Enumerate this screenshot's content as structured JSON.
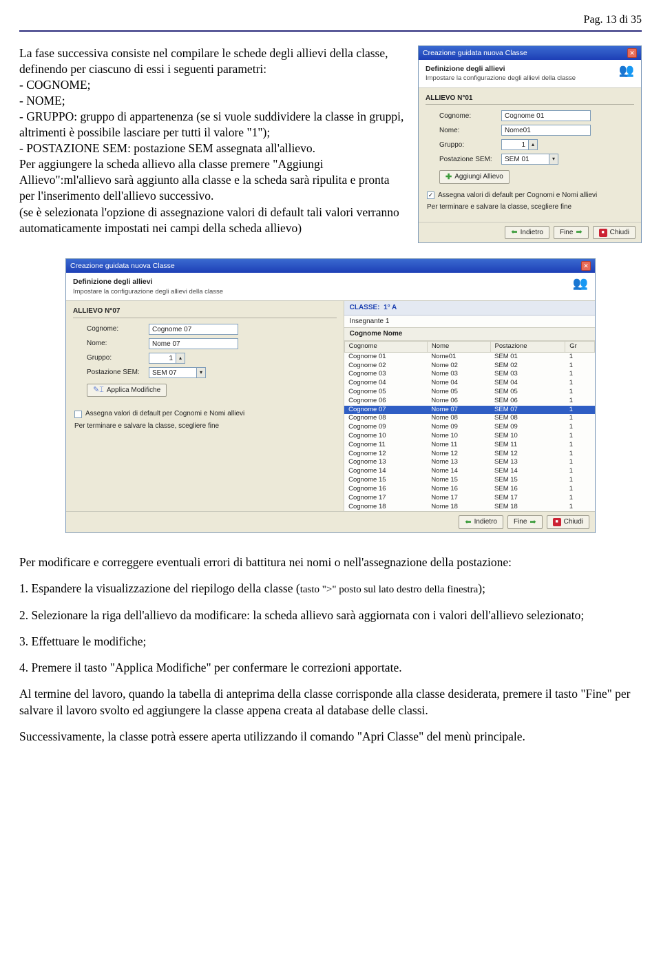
{
  "page": {
    "header": "Pag. 13 di 35"
  },
  "intro": {
    "para": "La fase successiva consiste nel compilare le schede degli allievi della classe, definendo per ciascuno di essi i seguenti parametri:",
    "items": {
      "a": "- COGNOME;",
      "b": "- NOME;",
      "c": "- GRUPPO: gruppo di appartenenza (se si vuole suddividere la classe in gruppi, altrimenti è possibile lasciare per tutti il valore \"1\");",
      "d": "- POSTAZIONE SEM: postazione SEM assegnata all'allievo."
    },
    "p2": "Per aggiungere la scheda allievo alla classe premere \"Aggiungi Allievo\":ml'allievo sarà aggiunto alla classe e la scheda sarà ripulita e pronta per l'inserimento dell'allievo successivo.",
    "p3": "(se è selezionata l'opzione di assegnazione valori di default tali valori verranno automaticamente impostati nei campi della scheda allievo)"
  },
  "dlg": {
    "title": "Creazione guidata nuova Classe",
    "hdr_title": "Definizione degli allievi",
    "hdr_sub": "Impostare la configurazione degli allievi della classe",
    "allievo_n": "ALLIEVO N°",
    "labels": {
      "cognome": "Cognome:",
      "nome": "Nome:",
      "gruppo": "Gruppo:",
      "postazione": "Postazione SEM:"
    },
    "add_btn": "Aggiungi Allievo",
    "apply_btn": "Applica Modifiche",
    "chk_label": "Assegna valori di default per Cognomi e Nomi allievi",
    "footer_note": "Per terminare e salvare la classe, scegliere fine",
    "btn_back": "Indietro",
    "btn_fine": "Fine",
    "btn_chiudi": "Chiudi"
  },
  "dlg1": {
    "num": "01",
    "cognome": "Cognome 01",
    "nome": "Nome01",
    "gruppo": "1",
    "sem": "SEM 01",
    "chk_checked": "✓"
  },
  "dlg2": {
    "num": "07",
    "cognome": "Cognome 07",
    "nome": "Nome 07",
    "gruppo": "1",
    "sem": "SEM 07",
    "classe_label": "CLASSE:",
    "classe_val": "1° A",
    "insegnante": "Insegnante 1",
    "colgroup": "Cognome Nome",
    "th": {
      "c": "Cognome",
      "n": "Nome",
      "p": "Postazione",
      "g": "Gr"
    },
    "rows": [
      {
        "c": "Cognome 01",
        "n": "Nome01",
        "p": "SEM 01",
        "g": "1"
      },
      {
        "c": "Cognome 02",
        "n": "Nome 02",
        "p": "SEM 02",
        "g": "1"
      },
      {
        "c": "Cognome 03",
        "n": "Nome 03",
        "p": "SEM 03",
        "g": "1"
      },
      {
        "c": "Cognome 04",
        "n": "Nome 04",
        "p": "SEM 04",
        "g": "1"
      },
      {
        "c": "Cognome 05",
        "n": "Nome 05",
        "p": "SEM 05",
        "g": "1"
      },
      {
        "c": "Cognome 06",
        "n": "Nome 06",
        "p": "SEM 06",
        "g": "1"
      },
      {
        "c": "Cognome 07",
        "n": "Nome 07",
        "p": "SEM 07",
        "g": "1"
      },
      {
        "c": "Cognome 08",
        "n": "Nome 08",
        "p": "SEM 08",
        "g": "1"
      },
      {
        "c": "Cognome 09",
        "n": "Nome 09",
        "p": "SEM 09",
        "g": "1"
      },
      {
        "c": "Cognome 10",
        "n": "Nome 10",
        "p": "SEM 10",
        "g": "1"
      },
      {
        "c": "Cognome 11",
        "n": "Nome 11",
        "p": "SEM 11",
        "g": "1"
      },
      {
        "c": "Cognome 12",
        "n": "Nome 12",
        "p": "SEM 12",
        "g": "1"
      },
      {
        "c": "Cognome 13",
        "n": "Nome 13",
        "p": "SEM 13",
        "g": "1"
      },
      {
        "c": "Cognome 14",
        "n": "Nome 14",
        "p": "SEM 14",
        "g": "1"
      },
      {
        "c": "Cognome 15",
        "n": "Nome 15",
        "p": "SEM 15",
        "g": "1"
      },
      {
        "c": "Cognome 16",
        "n": "Nome 16",
        "p": "SEM 16",
        "g": "1"
      },
      {
        "c": "Cognome 17",
        "n": "Nome 17",
        "p": "SEM 17",
        "g": "1"
      },
      {
        "c": "Cognome 18",
        "n": "Nome 18",
        "p": "SEM 18",
        "g": "1"
      }
    ],
    "selected_index": 6
  },
  "body2": {
    "p1": "Per modificare e correggere eventuali errori di battitura nei nomi o nell'assegnazione della postazione:",
    "li1a": "1. Espandere la visualizzazione del riepilogo della classe (",
    "li1b": "tasto \">\" posto sul lato destro della finestra",
    "li1c": ");",
    "li2": "2. Selezionare la riga dell'allievo da modificare: la scheda allievo sarà aggiornata con i valori dell'allievo selezionato;",
    "li3": "3. Effettuare le modifiche;",
    "li4": "4. Premere il tasto \"Applica Modifiche\" per confermare le correzioni apportate.",
    "p2": "Al termine del lavoro, quando la tabella di anteprima della classe corrisponde alla classe desiderata, premere il tasto \"Fine\" per salvare il lavoro svolto ed aggiungere la classe appena creata al database delle classi.",
    "p3": "Successivamente, la classe potrà essere aperta utilizzando il comando \"Apri Classe\" del menù principale."
  }
}
